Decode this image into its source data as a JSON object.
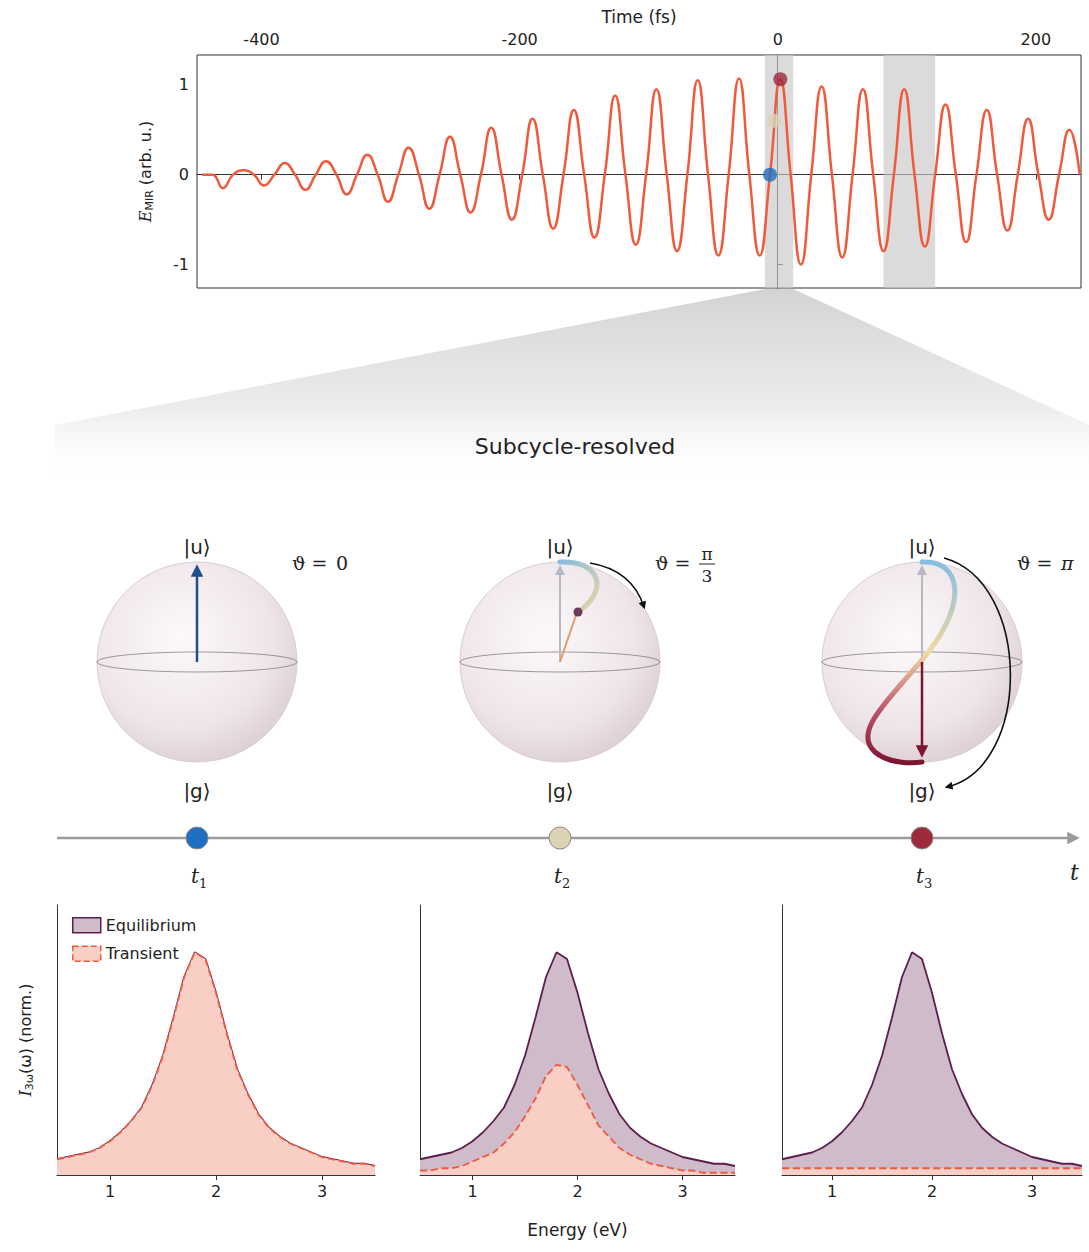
{
  "chart_data": [
    {
      "type": "line",
      "xlabel": "Time (fs)",
      "ylabel": {
        "text": "E",
        "sub": "MIR",
        "rest": " (arb. u.)"
      },
      "x": [
        -446,
        -438,
        -430,
        -422,
        -414,
        -406,
        -398,
        -390,
        -382,
        -374,
        -366,
        -358,
        -350,
        -342,
        -334,
        -326,
        -318,
        -310,
        -302,
        -294,
        -286,
        -278,
        -270,
        -262,
        -254,
        -246,
        -238,
        -230,
        -222,
        -214,
        -206,
        -198,
        -190,
        -182,
        -174,
        -166,
        -158,
        -150,
        -142,
        -134,
        -126,
        -118,
        -110,
        -102,
        -94,
        -86,
        -78,
        -70,
        -62,
        -54,
        -46,
        -38,
        -30,
        -22,
        -14,
        -6,
        2,
        10,
        18,
        26,
        34,
        42,
        50,
        58,
        66,
        74,
        82,
        90,
        98,
        106,
        114,
        122,
        130,
        138,
        146,
        154,
        162,
        170,
        178,
        186,
        194,
        202,
        210,
        218,
        226,
        234
      ],
      "series": [
        {
          "color": "#f05a3c",
          "values": [
            0,
            0,
            -0.15,
            0,
            0.05,
            0,
            -0.12,
            0,
            0.13,
            0,
            -0.17,
            0,
            0.15,
            0,
            -0.22,
            0,
            0.22,
            0,
            -0.3,
            0,
            0.3,
            0,
            -0.38,
            0,
            0.42,
            0,
            -0.42,
            0,
            0.52,
            0,
            -0.5,
            0,
            0.62,
            0,
            -0.6,
            0,
            0.72,
            0,
            -0.7,
            0,
            0.88,
            0,
            -0.78,
            0,
            0.95,
            0,
            -0.85,
            0,
            1.05,
            0,
            -0.9,
            0,
            1.07,
            0,
            -0.9,
            0,
            1.06,
            0,
            -1.0,
            0,
            0.98,
            0,
            -0.92,
            0,
            0.95,
            0,
            -0.85,
            0,
            0.95,
            0,
            -0.8,
            0,
            0.78,
            0,
            -0.75,
            0,
            0.72,
            0,
            -0.62,
            0,
            0.62,
            0,
            -0.5,
            0,
            0.5,
            0
          ]
        }
      ],
      "xlim": [
        -450,
        235
      ],
      "xticks": [
        -400,
        -200,
        0,
        200
      ],
      "ylim": [
        -1.26,
        1.33
      ],
      "yticks": [
        -1,
        0,
        1
      ],
      "grid": false,
      "shaded_regions": [
        [
          -10,
          12
        ],
        [
          82,
          122
        ]
      ],
      "markers": [
        {
          "x": -6,
          "y": 0,
          "color": "#1f6fc0"
        },
        {
          "x": -3,
          "y": 0.6,
          "color": "#ddd2b6"
        },
        {
          "x": 2,
          "y": 1.06,
          "color": "#9e2a3c"
        }
      ]
    },
    {
      "type": "area",
      "ylabel": {
        "text": "I",
        "sub": "3ω",
        "rest": "(ω) (norm.)"
      },
      "x": [
        0.5,
        0.6,
        0.7,
        0.8,
        0.9,
        1.0,
        1.1,
        1.2,
        1.3,
        1.4,
        1.5,
        1.6,
        1.7,
        1.8,
        1.9,
        2.0,
        2.1,
        2.2,
        2.3,
        2.4,
        2.5,
        2.6,
        2.7,
        2.8,
        2.9,
        3.0,
        3.1,
        3.2,
        3.3,
        3.4,
        3.5
      ],
      "series": [
        {
          "name": "Equilibrium",
          "color": "#5e1d4f",
          "line_style": "solid",
          "values": [
            0.07,
            0.08,
            0.09,
            0.1,
            0.12,
            0.15,
            0.19,
            0.24,
            0.3,
            0.4,
            0.53,
            0.7,
            0.88,
            0.99,
            0.96,
            0.81,
            0.63,
            0.47,
            0.36,
            0.27,
            0.21,
            0.17,
            0.14,
            0.12,
            0.1,
            0.08,
            0.07,
            0.06,
            0.05,
            0.05,
            0.04
          ]
        },
        {
          "name": "Transient",
          "color": "#ec5a3f",
          "line_style": "dashed",
          "values": [
            0.07,
            0.08,
            0.09,
            0.1,
            0.12,
            0.15,
            0.19,
            0.24,
            0.3,
            0.4,
            0.53,
            0.7,
            0.88,
            0.99,
            0.96,
            0.81,
            0.63,
            0.47,
            0.36,
            0.27,
            0.21,
            0.17,
            0.14,
            0.12,
            0.1,
            0.08,
            0.07,
            0.06,
            0.05,
            0.05,
            0.04
          ]
        }
      ],
      "xlim": [
        0.5,
        3.5
      ],
      "xticks": [
        1,
        2,
        3
      ],
      "ylim": [
        0,
        1.2
      ],
      "tick_labels": "x",
      "grid": false,
      "legend": "upper left"
    },
    {
      "type": "area",
      "xlabel": "Energy (eV)",
      "x": [
        0.5,
        0.6,
        0.7,
        0.8,
        0.9,
        1.0,
        1.1,
        1.2,
        1.3,
        1.4,
        1.5,
        1.6,
        1.7,
        1.8,
        1.9,
        2.0,
        2.1,
        2.2,
        2.3,
        2.4,
        2.5,
        2.6,
        2.7,
        2.8,
        2.9,
        3.0,
        3.1,
        3.2,
        3.3,
        3.4,
        3.5
      ],
      "series": [
        {
          "name": "Equilibrium",
          "color": "#5e1d4f",
          "line_style": "solid",
          "values": [
            0.07,
            0.08,
            0.09,
            0.1,
            0.12,
            0.15,
            0.19,
            0.24,
            0.3,
            0.4,
            0.53,
            0.7,
            0.88,
            0.99,
            0.96,
            0.81,
            0.63,
            0.47,
            0.36,
            0.27,
            0.21,
            0.17,
            0.14,
            0.12,
            0.1,
            0.08,
            0.07,
            0.06,
            0.05,
            0.05,
            0.04
          ]
        },
        {
          "name": "Transient",
          "color": "#ec5a3f",
          "line_style": "dashed",
          "values": [
            0.02,
            0.02,
            0.03,
            0.03,
            0.04,
            0.06,
            0.08,
            0.1,
            0.14,
            0.19,
            0.26,
            0.34,
            0.44,
            0.49,
            0.48,
            0.4,
            0.31,
            0.22,
            0.17,
            0.12,
            0.09,
            0.07,
            0.05,
            0.04,
            0.03,
            0.02,
            0.02,
            0.01,
            0.01,
            0.01,
            0.01
          ]
        }
      ],
      "xlim": [
        0.5,
        3.5
      ],
      "xticks": [
        1,
        2,
        3
      ],
      "ylim": [
        0,
        1.2
      ],
      "tick_labels": "x",
      "grid": false
    },
    {
      "type": "area",
      "x": [
        0.5,
        0.6,
        0.7,
        0.8,
        0.9,
        1.0,
        1.1,
        1.2,
        1.3,
        1.4,
        1.5,
        1.6,
        1.7,
        1.8,
        1.9,
        2.0,
        2.1,
        2.2,
        2.3,
        2.4,
        2.5,
        2.6,
        2.7,
        2.8,
        2.9,
        3.0,
        3.1,
        3.2,
        3.3,
        3.4,
        3.5
      ],
      "series": [
        {
          "name": "Equilibrium",
          "color": "#5e1d4f",
          "line_style": "solid",
          "values": [
            0.07,
            0.08,
            0.09,
            0.1,
            0.12,
            0.15,
            0.19,
            0.24,
            0.3,
            0.4,
            0.53,
            0.7,
            0.88,
            0.99,
            0.96,
            0.81,
            0.63,
            0.47,
            0.36,
            0.27,
            0.21,
            0.17,
            0.14,
            0.12,
            0.1,
            0.08,
            0.07,
            0.06,
            0.05,
            0.05,
            0.04
          ]
        },
        {
          "name": "Transient",
          "color": "#ec5a3f",
          "line_style": "dashed",
          "values": [
            0.03,
            0.03,
            0.03,
            0.03,
            0.03,
            0.03,
            0.03,
            0.03,
            0.03,
            0.03,
            0.03,
            0.03,
            0.03,
            0.03,
            0.03,
            0.03,
            0.03,
            0.03,
            0.03,
            0.03,
            0.03,
            0.03,
            0.03,
            0.03,
            0.03,
            0.03,
            0.03,
            0.03,
            0.03,
            0.03,
            0.03
          ]
        }
      ],
      "xlim": [
        0.5,
        3.5
      ],
      "xticks": [
        1,
        2,
        3
      ],
      "ylim": [
        0,
        1.2
      ],
      "tick_labels": "x",
      "grid": false
    }
  ],
  "diagram": {
    "title": "Subcycle-resolved",
    "spheres": [
      {
        "top_label": "|u⟩",
        "bottom_label": "|g⟩",
        "theta": {
          "text": "ϑ = ",
          "value": "0"
        }
      },
      {
        "top_label": "|u⟩",
        "bottom_label": "|g⟩",
        "theta": {
          "text": "ϑ = ",
          "num": "π",
          "den": "3"
        }
      },
      {
        "top_label": "|u⟩",
        "bottom_label": "|g⟩",
        "theta": {
          "text": "ϑ = ",
          "value": "π"
        }
      }
    ],
    "timeline": {
      "points": [
        {
          "text": "t",
          "sub": "1"
        },
        {
          "text": "t",
          "sub": "2"
        },
        {
          "text": "t",
          "sub": "3"
        }
      ],
      "axis_label": "t"
    }
  }
}
